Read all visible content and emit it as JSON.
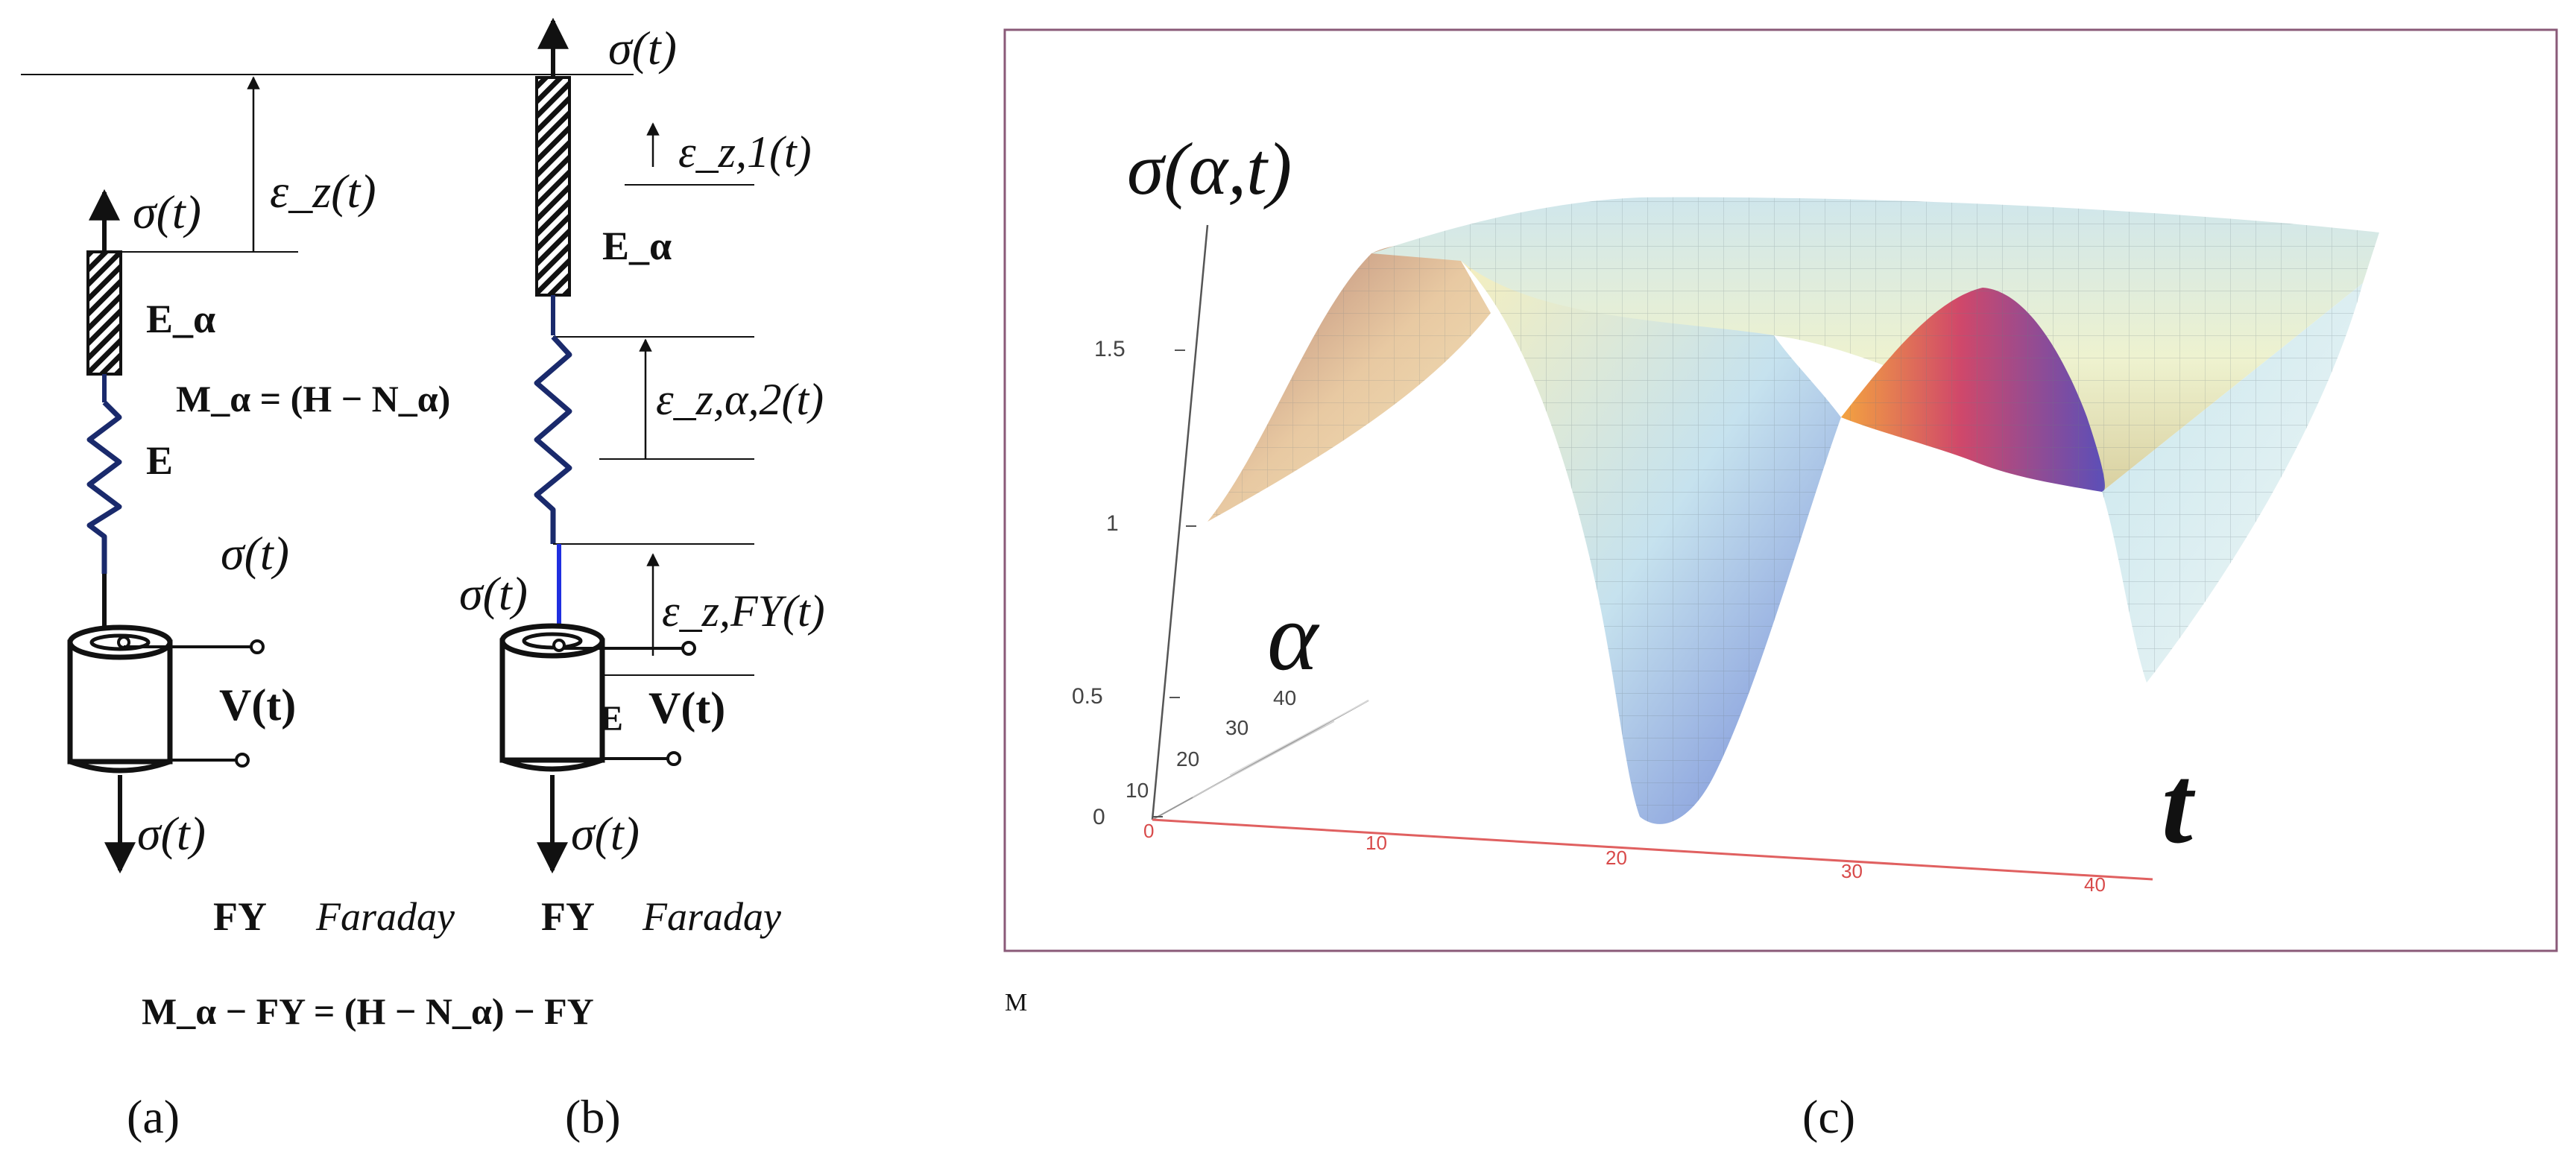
{
  "panel_a": {
    "label": "(a)",
    "sigma_top": "σ(t)",
    "epsilon_z": "ε_z(t)",
    "E_alpha": "E_α",
    "M_alpha_eq": "M_α = (H − N_α)",
    "E": "E",
    "sigma_mid": "σ(t)",
    "V": "V(t)",
    "sigma_bottom": "σ(t)",
    "FY": "FY",
    "faraday": "Faraday",
    "bottom_eq": "M_α − FY = (H − N_α) − FY"
  },
  "panel_b": {
    "label": "(b)",
    "sigma_top": "σ(t)",
    "epsilon_z1": "ε_z,1(t)",
    "E_alpha": "E_α",
    "epsilon_za2": "ε_z,α,2(t)",
    "sigma_mid": "σ(t)",
    "epsilon_zFY": "ε_z,FY(t)",
    "E": "E",
    "V": "V(t)",
    "sigma_bottom": "σ(t)",
    "FY": "FY",
    "faraday": "Faraday"
  },
  "panel_c": {
    "label": "(c)",
    "z_axis_label": "σ(α,t)",
    "alpha_label": "α",
    "t_label": "t",
    "z_ticks": [
      "0",
      "0.5",
      "1",
      "1.5"
    ],
    "alpha_ticks": [
      "10",
      "20",
      "30",
      "40"
    ],
    "t_ticks": [
      "0",
      "10",
      "20",
      "30",
      "40"
    ],
    "caption_mark": "M",
    "frame_color": "#8a5a78"
  }
}
